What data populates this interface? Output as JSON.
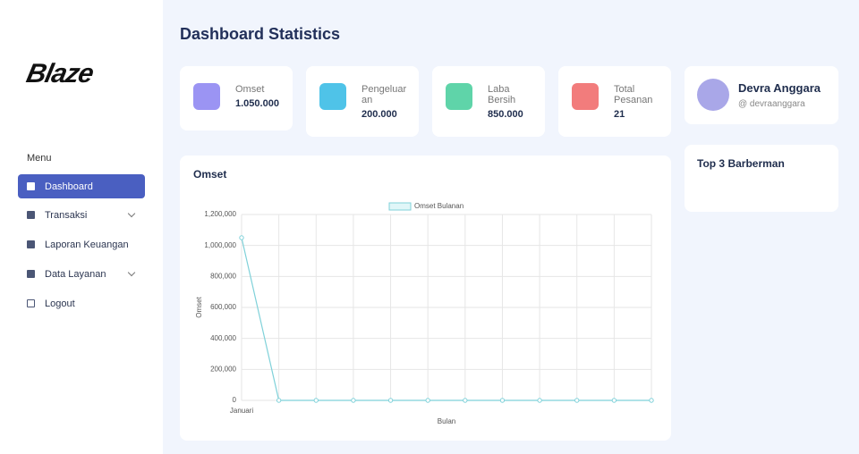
{
  "sidebar": {
    "logo": "Blaze",
    "menu_heading": "Menu",
    "items": [
      "Dashboard",
      "Transaksi",
      "Laporan Keuangan",
      "Data Layanan",
      "Logout"
    ]
  },
  "header": {
    "title": "Dashboard Statistics"
  },
  "stats": [
    {
      "label": "Omset",
      "value": "1.050.000"
    },
    {
      "label": "Pengeluaran",
      "value": "200.000"
    },
    {
      "label": "Laba Bersih",
      "value": "850.000"
    },
    {
      "label": "Total Pesanan",
      "value": "21"
    }
  ],
  "profile": {
    "name": "Devra Anggara",
    "handle": "@ devraanggara"
  },
  "top_barberman": {
    "title": "Top 3 Barberman"
  },
  "chart_data": {
    "type": "line",
    "title": "Omset",
    "x_label": "Bulan",
    "y_label": "Omset",
    "categories": [
      "Januari",
      null,
      null,
      null,
      null,
      null,
      null,
      null,
      null,
      null,
      null,
      null
    ],
    "series": [
      {
        "name": "Omset Bulanan",
        "color": "#7fd1d9",
        "values": [
          1050000,
          0,
          0,
          0,
          0,
          0,
          0,
          0,
          0,
          0,
          0,
          0
        ]
      }
    ],
    "ylim": [
      0,
      1200000
    ],
    "yticks": [
      0,
      {
        "value": 200000,
        "label": "200,000"
      },
      {
        "value": 400000,
        "label": "400,000"
      },
      {
        "value": 600000,
        "label": "600,000"
      },
      {
        "value": 800000,
        "label": "800,000"
      },
      {
        "value": 1000000,
        "label": "1,000,000"
      },
      {
        "value": 1200000,
        "label": "1,200,000"
      }
    ],
    "grid": true
  }
}
